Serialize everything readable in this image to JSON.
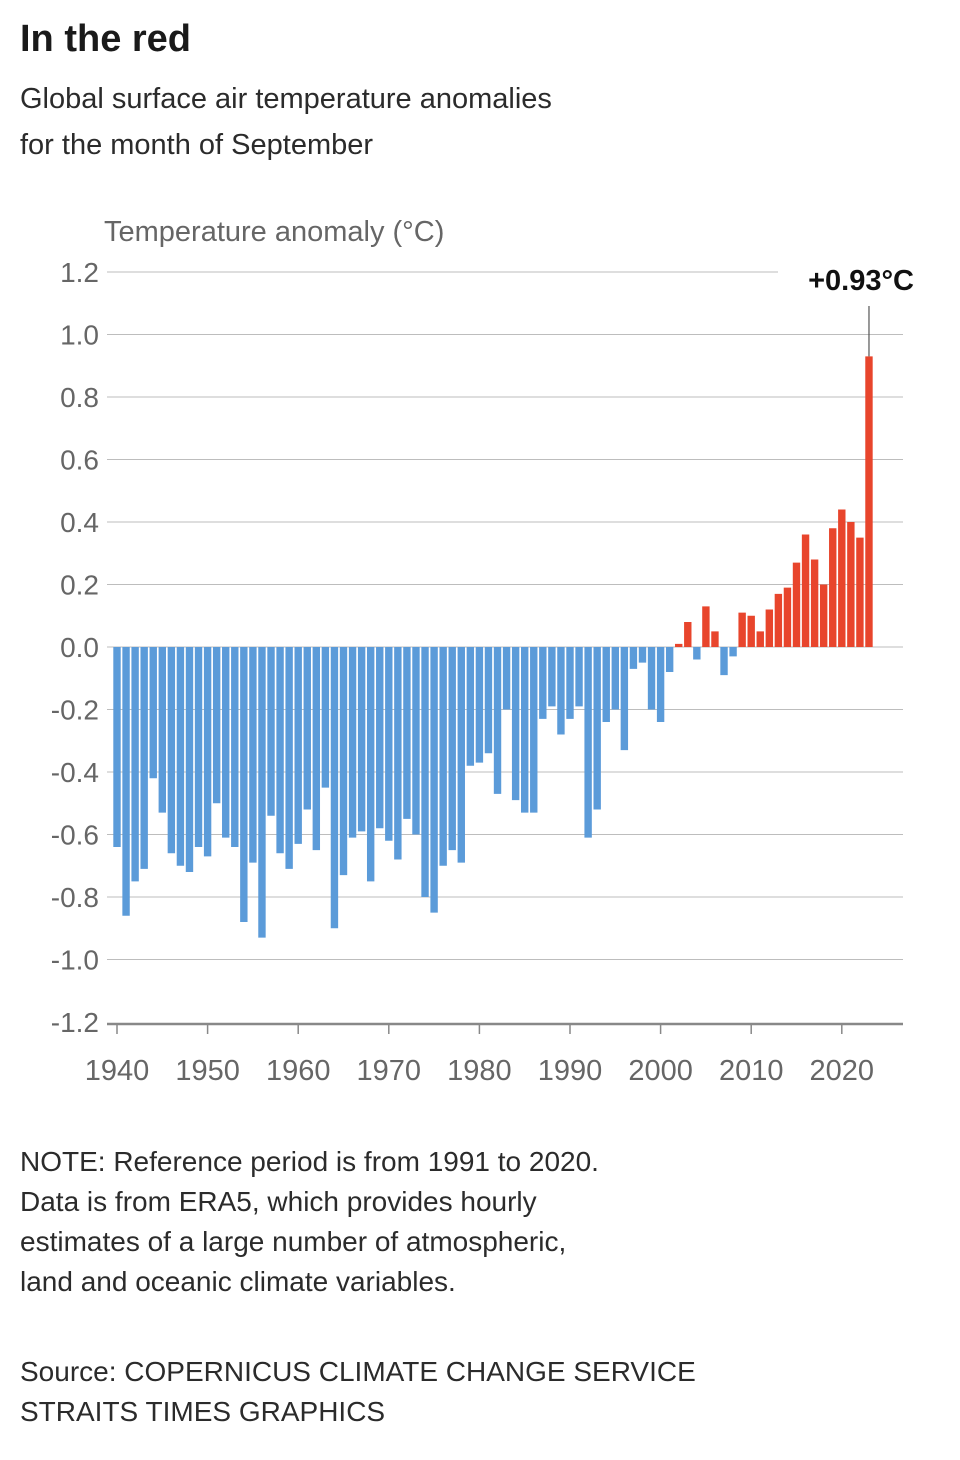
{
  "header": {
    "title": "In the red",
    "subtitle_line1": "Global surface air temperature anomalies",
    "subtitle_line2": "for the month of September"
  },
  "chart_data": {
    "type": "bar",
    "ylabel": "Temperature anomaly (°C)",
    "ylim": [
      -1.2,
      1.2
    ],
    "yticks": [
      1.2,
      1.0,
      0.8,
      0.6,
      0.4,
      0.2,
      0.0,
      -0.2,
      -0.4,
      -0.6,
      -0.8,
      -1.0,
      -1.2
    ],
    "ytick_labels": [
      "1.2",
      "1.0",
      "0.8",
      "0.6",
      "0.4",
      "0.2",
      "0.0",
      "-0.2",
      "-0.4",
      "-0.6",
      "-0.8",
      "-1.0",
      "-1.2"
    ],
    "xticks": [
      1940,
      1950,
      1960,
      1970,
      1980,
      1990,
      2000,
      2010,
      2020
    ],
    "xtick_labels": [
      "1940",
      "1950",
      "1960",
      "1970",
      "1980",
      "1990",
      "2000",
      "2010",
      "2020"
    ],
    "grid": true,
    "colors": {
      "negative": "#5b9bd9",
      "positive": "#e8452c",
      "grid": "#bdbdbd",
      "axis": "#888888"
    },
    "annotation": {
      "text": "+0.93°C",
      "x": 2023
    },
    "x": [
      1940,
      1941,
      1942,
      1943,
      1944,
      1945,
      1946,
      1947,
      1948,
      1949,
      1950,
      1951,
      1952,
      1953,
      1954,
      1955,
      1956,
      1957,
      1958,
      1959,
      1960,
      1961,
      1962,
      1963,
      1964,
      1965,
      1966,
      1967,
      1968,
      1969,
      1970,
      1971,
      1972,
      1973,
      1974,
      1975,
      1976,
      1977,
      1978,
      1979,
      1980,
      1981,
      1982,
      1983,
      1984,
      1985,
      1986,
      1987,
      1988,
      1989,
      1990,
      1991,
      1992,
      1993,
      1994,
      1995,
      1996,
      1997,
      1998,
      1999,
      2000,
      2001,
      2002,
      2003,
      2004,
      2005,
      2006,
      2007,
      2008,
      2009,
      2010,
      2011,
      2012,
      2013,
      2014,
      2015,
      2016,
      2017,
      2018,
      2019,
      2020,
      2021,
      2022,
      2023
    ],
    "values": [
      -0.64,
      -0.86,
      -0.75,
      -0.71,
      -0.42,
      -0.53,
      -0.66,
      -0.7,
      -0.72,
      -0.64,
      -0.67,
      -0.5,
      -0.61,
      -0.64,
      -0.88,
      -0.69,
      -0.93,
      -0.54,
      -0.66,
      -0.71,
      -0.63,
      -0.52,
      -0.65,
      -0.45,
      -0.9,
      -0.73,
      -0.61,
      -0.59,
      -0.75,
      -0.58,
      -0.62,
      -0.68,
      -0.55,
      -0.6,
      -0.8,
      -0.85,
      -0.7,
      -0.65,
      -0.69,
      -0.38,
      -0.37,
      -0.34,
      -0.47,
      -0.2,
      -0.49,
      -0.53,
      -0.53,
      -0.23,
      -0.19,
      -0.28,
      -0.23,
      -0.19,
      -0.61,
      -0.52,
      -0.24,
      -0.2,
      -0.33,
      -0.07,
      -0.05,
      -0.2,
      -0.24,
      -0.08,
      0.01,
      0.08,
      -0.04,
      0.13,
      0.05,
      -0.09,
      -0.03,
      0.11,
      0.1,
      0.05,
      0.12,
      0.17,
      0.19,
      0.27,
      0.36,
      0.28,
      0.2,
      0.38,
      0.44,
      0.4,
      0.35,
      0.93
    ]
  },
  "note": {
    "line1": "NOTE: Reference period is from 1991 to 2020.",
    "line2": "Data is from ERA5, which provides hourly",
    "line3": "estimates of a large number of atmospheric,",
    "line4": "land and oceanic climate variables."
  },
  "source": {
    "line1": "Source: COPERNICUS CLIMATE CHANGE SERVICE",
    "line2": "STRAITS TIMES GRAPHICS"
  }
}
